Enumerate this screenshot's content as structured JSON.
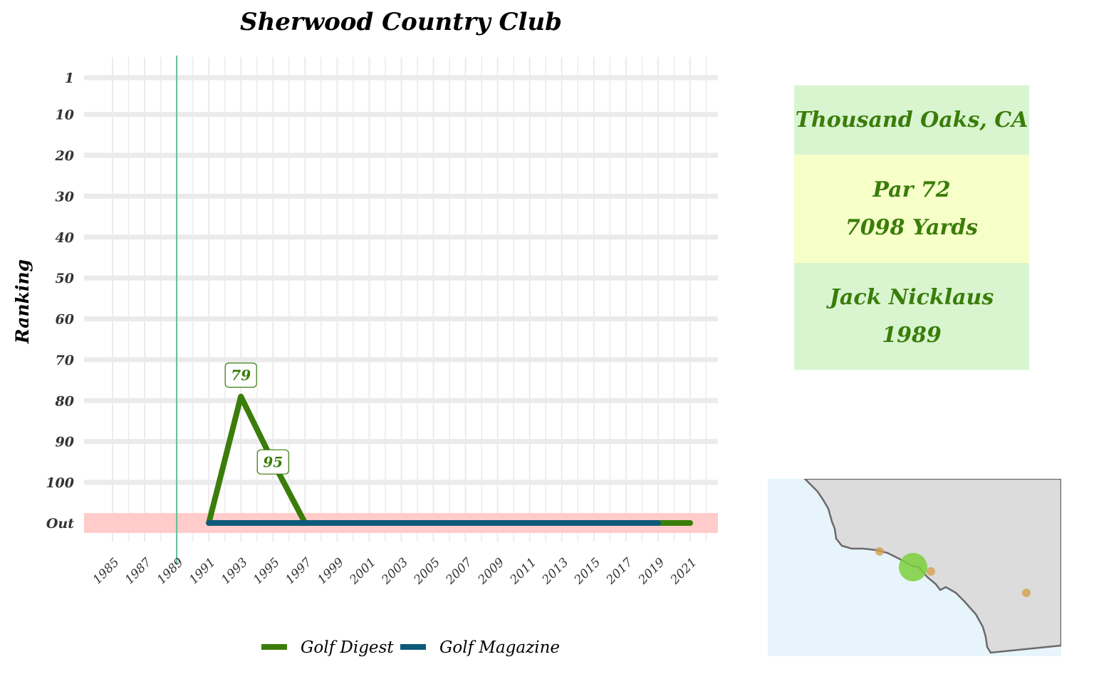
{
  "chart_data": {
    "type": "line",
    "title": "Sherwood Country Club",
    "ylabel": "Ranking",
    "xlabel": "",
    "y_ticks": [
      "1",
      "10",
      "20",
      "30",
      "40",
      "50",
      "60",
      "70",
      "80",
      "90",
      "100",
      "Out"
    ],
    "x_ticks": [
      "1985",
      "1987",
      "1989",
      "1991",
      "1993",
      "1995",
      "1997",
      "1999",
      "2001",
      "2003",
      "2005",
      "2007",
      "2009",
      "2011",
      "2013",
      "2015",
      "2017",
      "2019",
      "2021"
    ],
    "xlim": [
      1984,
      2022
    ],
    "grid": true,
    "legend_position": "bottom",
    "y_reversed": true,
    "out_band_label": "Out",
    "reference_line_year": 1989,
    "series": [
      {
        "name": "Golf Digest",
        "color": "#3a7d0a",
        "points": [
          {
            "x": 1991,
            "y": "Out"
          },
          {
            "x": 1993,
            "y": 79
          },
          {
            "x": 1995,
            "y": 95
          },
          {
            "x": 1997,
            "y": "Out"
          },
          {
            "x": 2021,
            "y": "Out"
          }
        ]
      },
      {
        "name": "Golf Magazine",
        "color": "#0e5a78",
        "points": [
          {
            "x": 1991,
            "y": "Out"
          },
          {
            "x": 2019,
            "y": "Out"
          }
        ]
      }
    ],
    "data_labels": [
      {
        "x": 1993,
        "y": 79,
        "text": "79"
      },
      {
        "x": 1995,
        "y": 95,
        "text": "95"
      }
    ]
  },
  "info": {
    "location": "Thousand Oaks, CA",
    "par": "Par 72",
    "yards": "7098 Yards",
    "architect": "Jack Nicklaus",
    "year": "1989"
  },
  "map": {
    "ocean_color": "#e8f4fc",
    "land_color": "#dcdcdc",
    "highlight_color": "#7ccf3c",
    "other_course_color": "#d4a050"
  }
}
